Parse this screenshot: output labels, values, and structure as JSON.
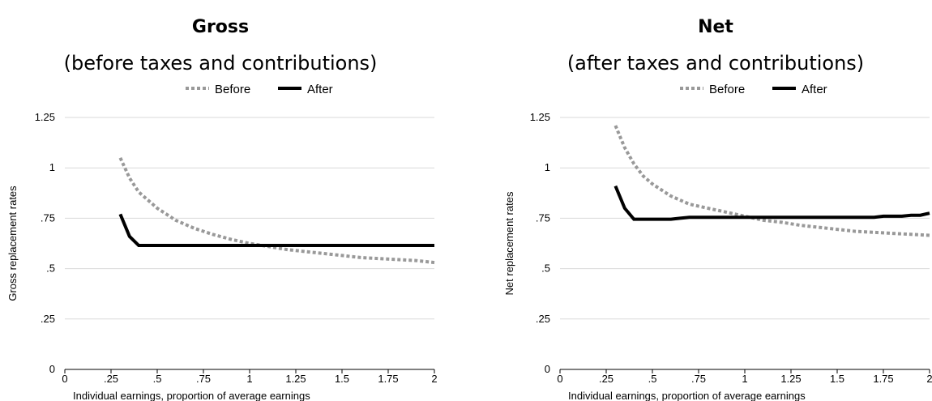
{
  "chart_data": [
    {
      "type": "line",
      "title": "Gross",
      "subtitle": "(before taxes and contributions)",
      "xlabel": "Individual earnings, proportion of average earnings",
      "ylabel": "Gross replacement rates",
      "xlim": [
        0,
        2
      ],
      "ylim": [
        0,
        1.25
      ],
      "x_ticks": [
        0,
        0.25,
        0.5,
        0.75,
        1,
        1.25,
        1.5,
        1.75,
        2
      ],
      "x_tick_labels": [
        "0",
        ".25",
        ".5",
        ".75",
        "1",
        "1.25",
        "1.5",
        "1.75",
        "2"
      ],
      "y_ticks": [
        0,
        0.25,
        0.5,
        0.75,
        1,
        1.25
      ],
      "y_tick_labels": [
        "0",
        ".25",
        ".5",
        ".75",
        "1",
        "1.25"
      ],
      "grid": "horizontal",
      "legend_position": "top-center",
      "series": [
        {
          "name": "Before",
          "color": "#999999",
          "style": "dotted",
          "x": [
            0.3,
            0.35,
            0.4,
            0.45,
            0.5,
            0.55,
            0.6,
            0.7,
            0.8,
            0.9,
            1.0,
            1.1,
            1.2,
            1.3,
            1.4,
            1.5,
            1.6,
            1.7,
            1.8,
            1.9,
            2.0
          ],
          "y": [
            1.05,
            0.95,
            0.88,
            0.84,
            0.8,
            0.77,
            0.74,
            0.7,
            0.67,
            0.645,
            0.625,
            0.61,
            0.595,
            0.585,
            0.575,
            0.565,
            0.555,
            0.55,
            0.545,
            0.54,
            0.53
          ]
        },
        {
          "name": "After",
          "color": "#000000",
          "style": "solid",
          "x": [
            0.3,
            0.35,
            0.4,
            0.5,
            1.0,
            1.5,
            2.0
          ],
          "y": [
            0.77,
            0.66,
            0.615,
            0.615,
            0.615,
            0.615,
            0.615
          ]
        }
      ]
    },
    {
      "type": "line",
      "title": "Net",
      "subtitle": "(after taxes and contributions)",
      "xlabel": "Individual earnings, proportion of average earnings",
      "ylabel": "Net replacement rates",
      "xlim": [
        0,
        2
      ],
      "ylim": [
        0,
        1.25
      ],
      "x_ticks": [
        0,
        0.25,
        0.5,
        0.75,
        1,
        1.25,
        1.5,
        1.75,
        2
      ],
      "x_tick_labels": [
        "0",
        ".25",
        ".5",
        ".75",
        "1",
        "1.25",
        "1.5",
        "1.75",
        "2"
      ],
      "y_ticks": [
        0,
        0.25,
        0.5,
        0.75,
        1,
        1.25
      ],
      "y_tick_labels": [
        "0",
        ".25",
        ".5",
        ".75",
        "1",
        "1.25"
      ],
      "grid": "horizontal",
      "legend_position": "top-center",
      "series": [
        {
          "name": "Before",
          "color": "#999999",
          "style": "dotted",
          "x": [
            0.3,
            0.35,
            0.4,
            0.45,
            0.5,
            0.55,
            0.6,
            0.7,
            0.8,
            0.9,
            1.0,
            1.1,
            1.2,
            1.3,
            1.4,
            1.5,
            1.6,
            1.7,
            1.8,
            1.9,
            2.0
          ],
          "y": [
            1.21,
            1.1,
            1.02,
            0.96,
            0.92,
            0.89,
            0.86,
            0.82,
            0.8,
            0.78,
            0.76,
            0.74,
            0.73,
            0.715,
            0.705,
            0.695,
            0.685,
            0.68,
            0.675,
            0.67,
            0.665
          ]
        },
        {
          "name": "After",
          "color": "#000000",
          "style": "solid",
          "x": [
            0.3,
            0.35,
            0.4,
            0.5,
            0.6,
            0.65,
            0.7,
            1.0,
            1.2,
            1.5,
            1.7,
            1.75,
            1.85,
            1.9,
            1.95,
            2.0
          ],
          "y": [
            0.91,
            0.8,
            0.745,
            0.745,
            0.745,
            0.75,
            0.755,
            0.755,
            0.755,
            0.755,
            0.755,
            0.76,
            0.76,
            0.765,
            0.765,
            0.775
          ]
        }
      ]
    }
  ]
}
